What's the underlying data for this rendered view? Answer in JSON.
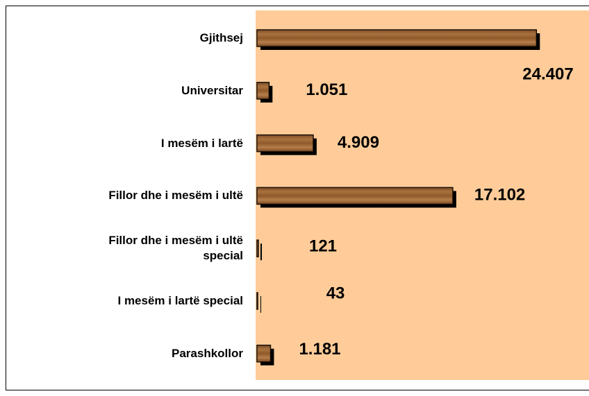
{
  "chart_data": {
    "type": "bar",
    "orientation": "horizontal",
    "categories": [
      "Gjithsej",
      "Universitar",
      "I mesëm i lartë",
      "Fillor dhe i mesëm i ultë",
      "Fillor dhe i mesëm i ultë\nspecial",
      "I mesëm i lartë special",
      "Parashkollor"
    ],
    "values": [
      24407,
      1051,
      4909,
      17102,
      121,
      43,
      1181
    ],
    "value_labels": [
      "24.407",
      "1.051",
      "4.909",
      "17.102",
      "121",
      "43",
      "1.181"
    ],
    "color": "#9a6233",
    "xlim": [
      0,
      29000
    ]
  }
}
